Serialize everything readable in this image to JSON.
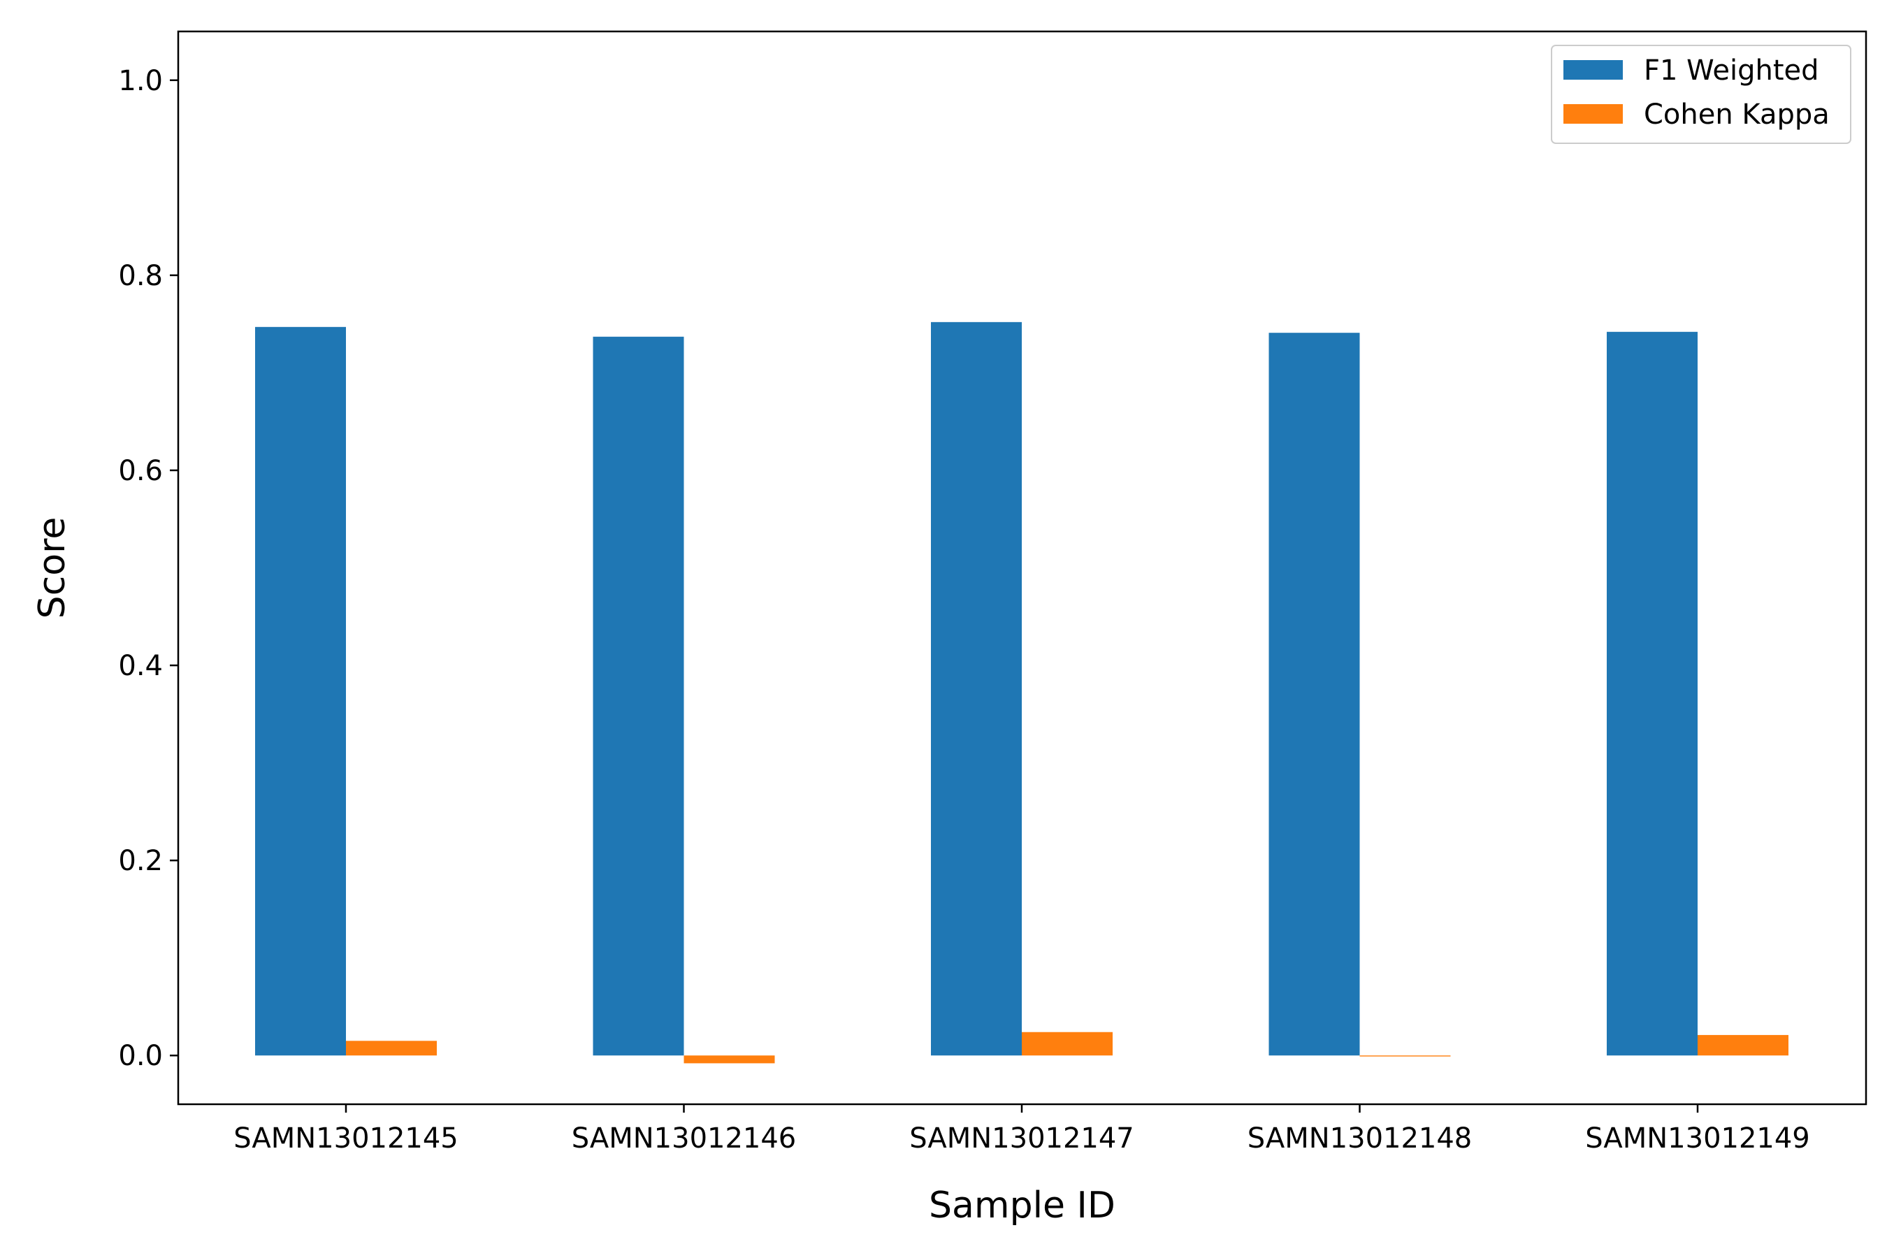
{
  "chart_data": {
    "type": "bar",
    "title": "",
    "xlabel": "Sample ID",
    "ylabel": "Score",
    "categories": [
      "SAMN13012145",
      "SAMN13012146",
      "SAMN13012147",
      "SAMN13012148",
      "SAMN13012149"
    ],
    "series": [
      {
        "name": "F1 Weighted",
        "color": "#1f77b4",
        "values": [
          0.747,
          0.737,
          0.752,
          0.741,
          0.742
        ]
      },
      {
        "name": "Cohen Kappa",
        "color": "#ff7f0e",
        "values": [
          0.015,
          -0.008,
          0.024,
          -0.001,
          0.021
        ]
      }
    ],
    "ylim": [
      -0.05,
      1.05
    ],
    "yticks": [
      0.0,
      0.2,
      0.4,
      0.6,
      0.8,
      1.0
    ],
    "ytick_labels": [
      "0.0",
      "0.2",
      "0.4",
      "0.6",
      "0.8",
      "1.0"
    ],
    "legend": {
      "placement": "top-right"
    },
    "grid": false
  }
}
